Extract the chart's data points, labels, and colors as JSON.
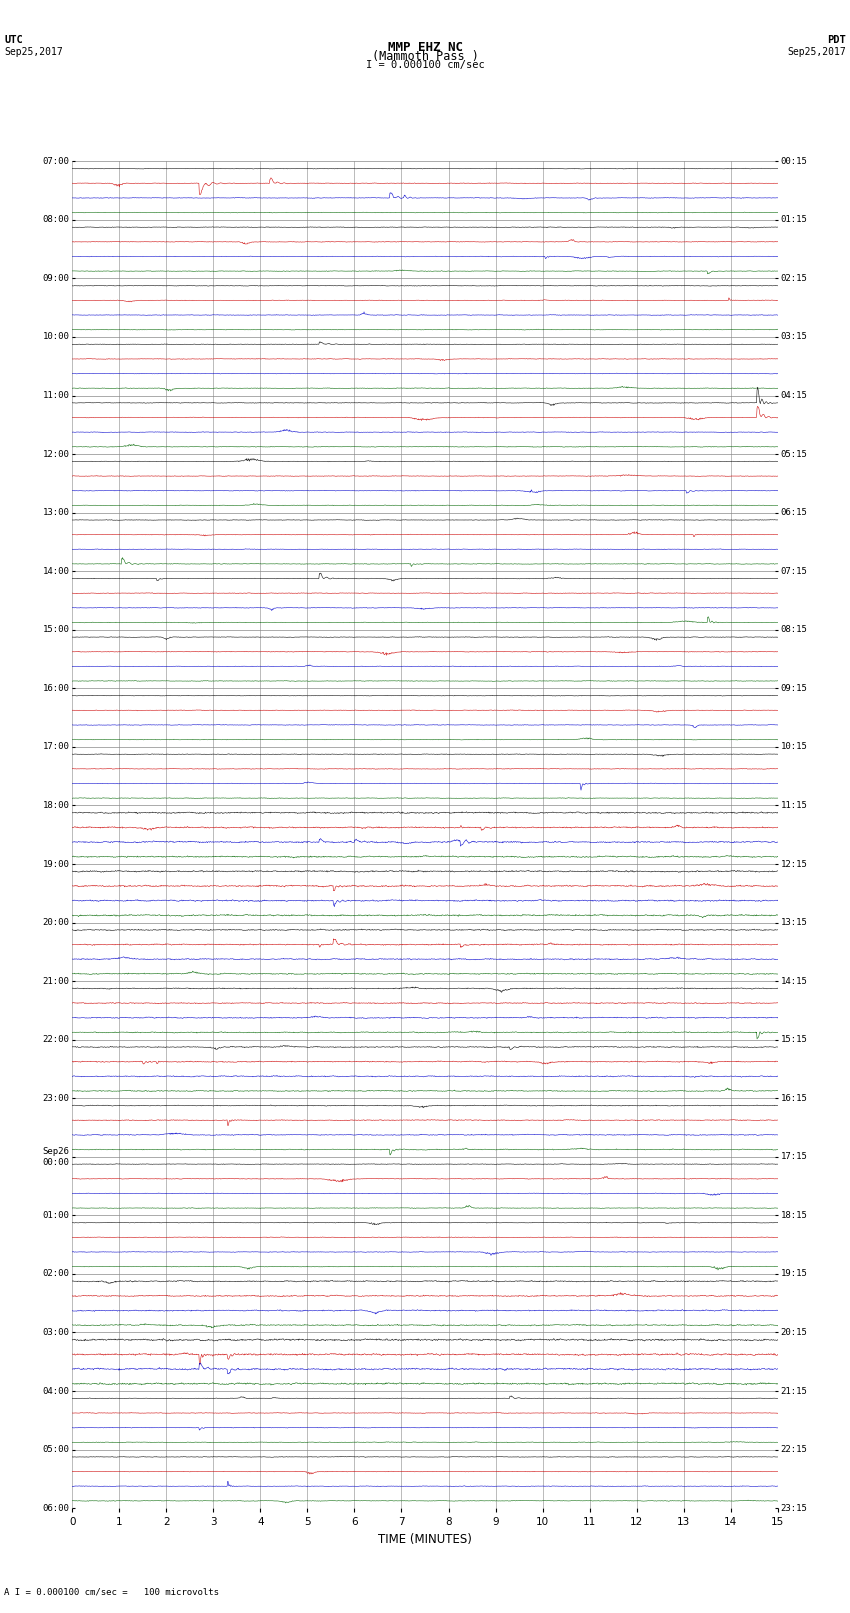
{
  "title_line1": "MMP EHZ NC",
  "title_line2": "(Mammoth Pass )",
  "scale_label": "I = 0.000100 cm/sec",
  "bottom_label": "A I = 0.000100 cm/sec =   100 microvolts",
  "xlabel": "TIME (MINUTES)",
  "bg_color": "#ffffff",
  "trace_colors": [
    "#000000",
    "#cc0000",
    "#0000cc",
    "#006600"
  ],
  "grid_color": "#888888",
  "num_rows": 23,
  "minutes_per_row": 15,
  "utc_labels": [
    "07:00",
    "08:00",
    "09:00",
    "10:00",
    "11:00",
    "12:00",
    "13:00",
    "14:00",
    "15:00",
    "16:00",
    "17:00",
    "18:00",
    "19:00",
    "20:00",
    "21:00",
    "22:00",
    "23:00",
    "Sep26\n00:00",
    "01:00",
    "02:00",
    "03:00",
    "04:00",
    "05:00",
    "06:00"
  ],
  "pdt_labels": [
    "00:15",
    "01:15",
    "02:15",
    "03:15",
    "04:15",
    "05:15",
    "06:15",
    "07:15",
    "08:15",
    "09:15",
    "10:15",
    "11:15",
    "12:15",
    "13:15",
    "14:15",
    "15:15",
    "16:15",
    "17:15",
    "18:15",
    "19:15",
    "20:15",
    "21:15",
    "22:15",
    "23:15"
  ],
  "seed": 42
}
